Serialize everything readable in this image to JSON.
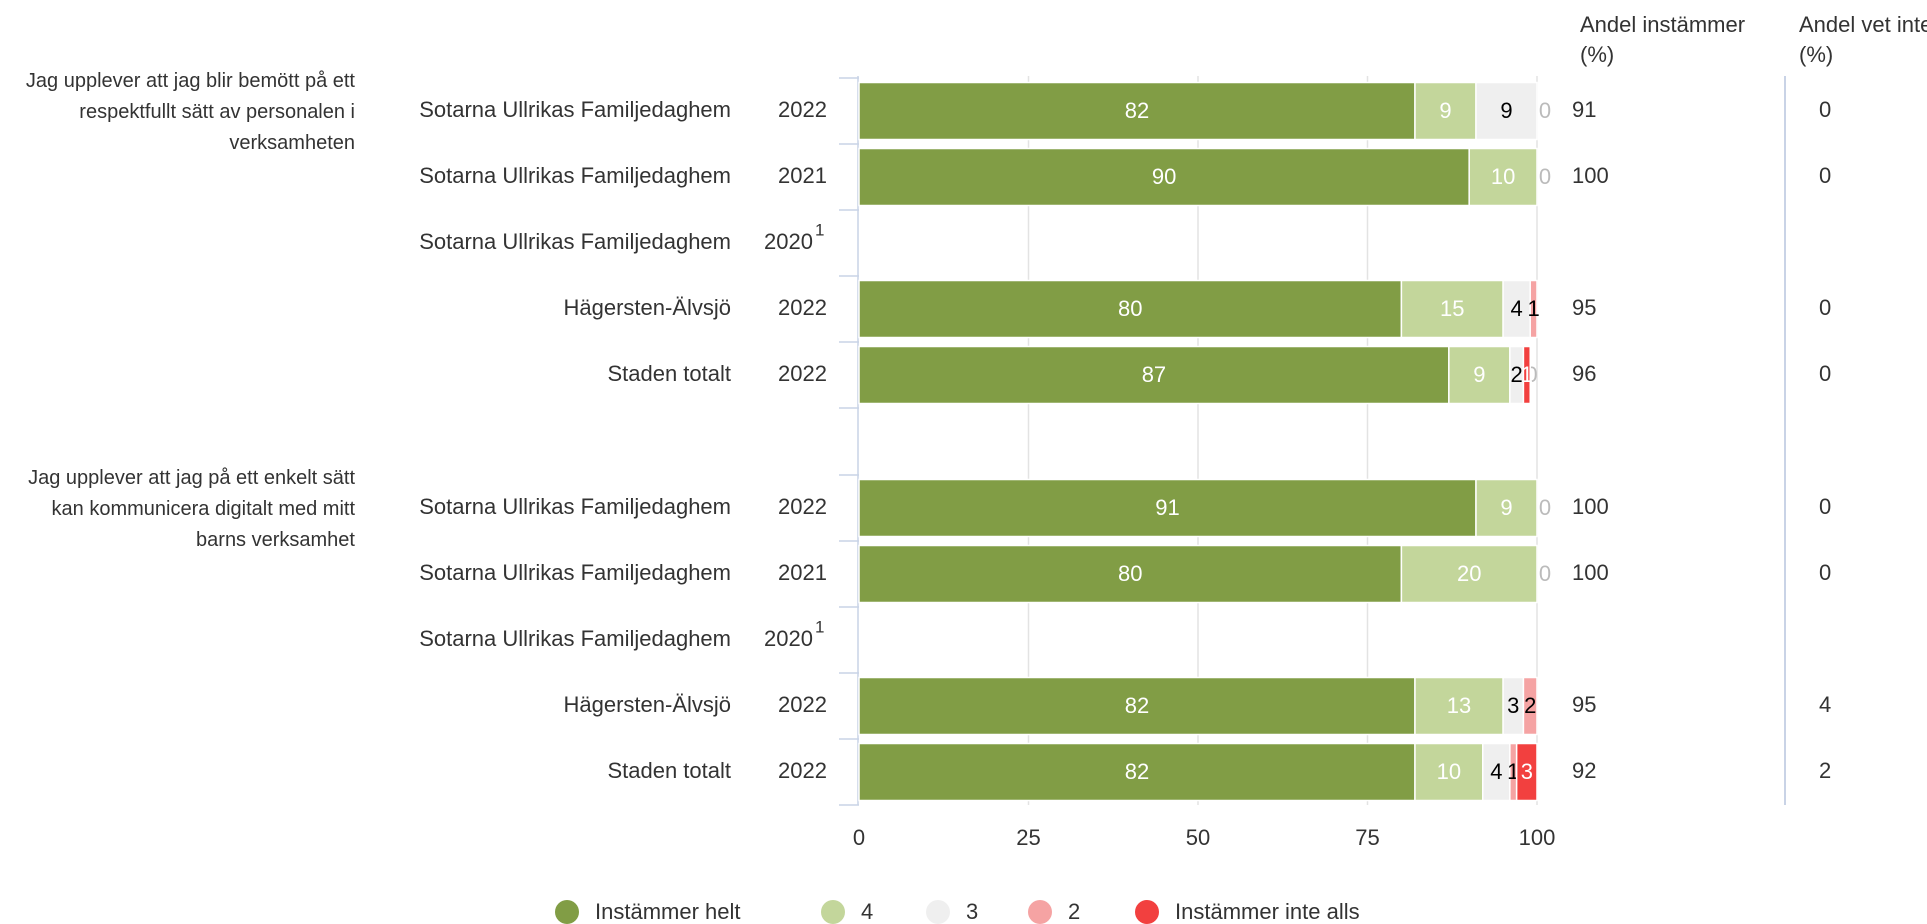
{
  "chart_data": {
    "type": "bar",
    "orientation": "horizontal",
    "stacked": true,
    "xlim": [
      0,
      100
    ],
    "xticks": [
      0,
      25,
      50,
      75,
      100
    ],
    "grid": true,
    "legend": "bottom",
    "series": [
      {
        "name": "Instämmer helt",
        "color": "#819d45",
        "text_color": "#ffffff"
      },
      {
        "name": "4",
        "color": "#c3d69b",
        "text_color": "#ffffff"
      },
      {
        "name": "3",
        "color": "#efefef",
        "text_color": "#000000"
      },
      {
        "name": "2",
        "color": "#f5a3a3",
        "text_color": "#000000"
      },
      {
        "name": "Instämmer inte alls",
        "color": "#f2403f",
        "text_color": "#ffffff"
      }
    ],
    "columns": [
      "Andel instämmer (%)",
      "Andel vet inte (%)"
    ],
    "panels": [
      {
        "title": "Jag upplever att jag blir bemött på ett respektfullt sätt av personalen i verksamheten",
        "categories": [
          "Sotarna Ullrikas Familjedaghem",
          "Sotarna Ullrikas Familjedaghem",
          "Sotarna Ullrikas Familjedaghem",
          "Hägersten-Älvsjö",
          "Staden totalt"
        ],
        "years": [
          "2022",
          "2021",
          "2020",
          "2022",
          "2022"
        ],
        "notes": [
          null,
          null,
          "1",
          null,
          null
        ],
        "series": [
          {
            "values": [
              82,
              90,
              null,
              80,
              87
            ]
          },
          {
            "values": [
              9,
              10,
              null,
              15,
              9
            ]
          },
          {
            "values": [
              9,
              0,
              null,
              4,
              2
            ]
          },
          {
            "values": [
              0,
              null,
              null,
              1,
              0
            ]
          },
          {
            "values": [
              null,
              null,
              null,
              null,
              1
            ]
          }
        ],
        "share_agree": [
          91,
          100,
          null,
          95,
          96
        ],
        "share_dont_know": [
          0,
          0,
          null,
          0,
          0
        ]
      },
      {
        "title": "Jag upplever att jag på ett enkelt sätt kan kommunicera digitalt med mitt barns verksamhet",
        "categories": [
          "Sotarna Ullrikas Familjedaghem",
          "Sotarna Ullrikas Familjedaghem",
          "Sotarna Ullrikas Familjedaghem",
          "Hägersten-Älvsjö",
          "Staden totalt"
        ],
        "years": [
          "2022",
          "2021",
          "2020",
          "2022",
          "2022"
        ],
        "notes": [
          null,
          null,
          "1",
          null,
          null
        ],
        "series": [
          {
            "values": [
              91,
              80,
              null,
              82,
              82
            ]
          },
          {
            "values": [
              9,
              20,
              null,
              13,
              10
            ]
          },
          {
            "values": [
              0,
              0,
              null,
              3,
              4
            ]
          },
          {
            "values": [
              null,
              null,
              null,
              2,
              1
            ]
          },
          {
            "values": [
              null,
              null,
              null,
              null,
              3
            ]
          }
        ],
        "share_agree": [
          100,
          100,
          null,
          95,
          92
        ],
        "share_dont_know": [
          0,
          0,
          null,
          4,
          2
        ]
      }
    ]
  }
}
